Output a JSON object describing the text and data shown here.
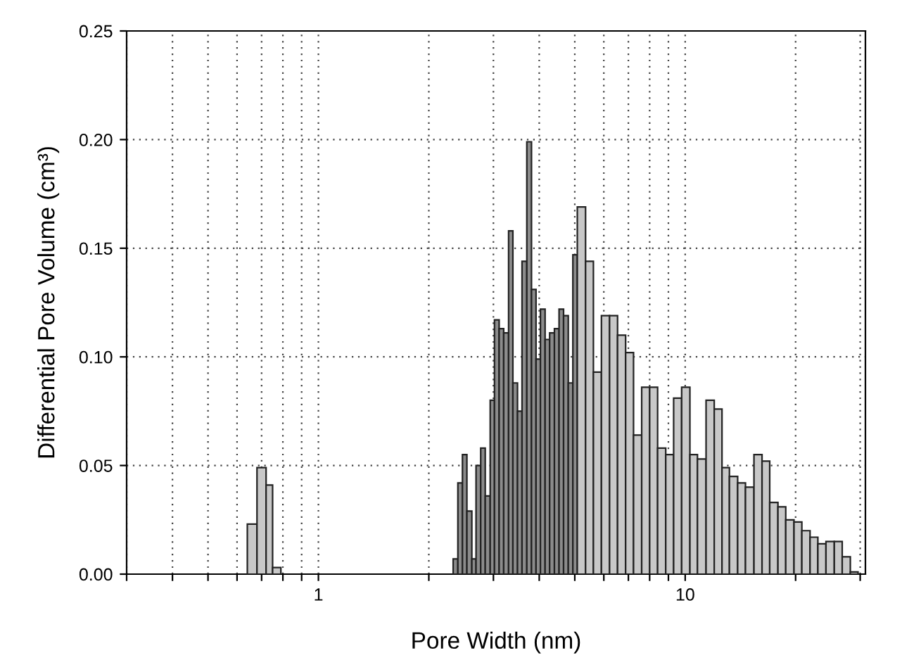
{
  "chart_data": {
    "type": "histogram",
    "xlabel": "Pore Width (nm)",
    "ylabel": "Differential Pore Volume (cm³)",
    "log": "x",
    "bins": [
      0.64,
      0.68,
      0.72,
      0.75,
      0.79,
      2.33,
      2.4,
      2.47,
      2.54,
      2.62,
      2.69,
      2.77,
      2.85,
      2.94,
      3.02,
      3.11,
      3.2,
      3.3,
      3.39,
      3.49,
      3.59,
      3.7,
      3.81,
      3.92,
      4.03,
      4.15,
      4.27,
      4.4,
      4.53,
      4.66,
      4.8,
      4.94,
      5.08,
      5.35,
      5.62,
      5.91,
      6.22,
      6.54,
      6.88,
      7.23,
      7.61,
      8.0,
      8.41,
      8.85,
      9.3,
      9.78,
      10.3,
      10.8,
      11.4,
      12.0,
      12.6,
      13.2,
      13.9,
      14.6,
      15.4,
      16.2,
      17.0,
      17.9,
      18.8,
      19.8,
      20.8,
      21.9,
      23.0,
      24.2,
      25.5,
      26.8,
      28.2,
      29.6
    ],
    "values": [
      0.023,
      0.049,
      0.041,
      0.003,
      null,
      0.007,
      0.042,
      0.055,
      0.029,
      0.007,
      0.05,
      0.058,
      0.036,
      0.08,
      0.117,
      0.113,
      0.111,
      0.158,
      0.088,
      0.075,
      0.144,
      0.199,
      0.131,
      0.099,
      0.122,
      0.108,
      0.111,
      0.113,
      0.122,
      0.119,
      0.088,
      0.147,
      0.169,
      0.144,
      0.093,
      0.119,
      0.119,
      0.11,
      0.102,
      0.064,
      0.086,
      0.086,
      0.058,
      0.055,
      0.081,
      0.086,
      0.055,
      0.053,
      0.08,
      0.076,
      0.049,
      0.045,
      0.042,
      0.04,
      0.055,
      0.052,
      0.033,
      0.031,
      0.025,
      0.024,
      0.02,
      0.017,
      0.014,
      0.015,
      0.015,
      0.008,
      0.001
    ],
    "colors": [
      "#c8c8c8",
      "#c8c8c8",
      "#c8c8c8",
      "#c8c8c8",
      "#c8c8c8",
      "#8c8c8c",
      "#8c8c8c",
      "#8c8c8c",
      "#8c8c8c",
      "#8c8c8c",
      "#8c8c8c",
      "#8c8c8c",
      "#8c8c8c",
      "#8c8c8c",
      "#8c8c8c",
      "#8c8c8c",
      "#8c8c8c",
      "#8c8c8c",
      "#8c8c8c",
      "#8c8c8c",
      "#8c8c8c",
      "#8c8c8c",
      "#8c8c8c",
      "#8c8c8c",
      "#8c8c8c",
      "#8c8c8c",
      "#8c8c8c",
      "#8c8c8c",
      "#8c8c8c",
      "#8c8c8c",
      "#8c8c8c",
      "#8c8c8c",
      "#c8c8c8",
      "#c8c8c8",
      "#c8c8c8",
      "#c8c8c8",
      "#c8c8c8",
      "#c8c8c8",
      "#c8c8c8",
      "#c8c8c8",
      "#c8c8c8",
      "#c8c8c8",
      "#c8c8c8",
      "#c8c8c8",
      "#c8c8c8",
      "#c8c8c8",
      "#c8c8c8",
      "#c8c8c8",
      "#c8c8c8",
      "#c8c8c8",
      "#c8c8c8",
      "#c8c8c8",
      "#c8c8c8",
      "#c8c8c8",
      "#c8c8c8",
      "#c8c8c8",
      "#c8c8c8",
      "#c8c8c8",
      "#c8c8c8",
      "#c8c8c8",
      "#c8c8c8",
      "#c8c8c8",
      "#c8c8c8",
      "#c8c8c8",
      "#c8c8c8",
      "#c8c8c8",
      "#c8c8c8"
    ],
    "xlim": [
      0.3,
      31
    ],
    "xticks": [
      {
        "value": 0.3,
        "label": null
      },
      {
        "value": 0.4,
        "label": null
      },
      {
        "value": 0.5,
        "label": null
      },
      {
        "value": 0.6,
        "label": null
      },
      {
        "value": 0.7,
        "label": null
      },
      {
        "value": 0.8,
        "label": null
      },
      {
        "value": 0.9,
        "label": null
      },
      1,
      {
        "value": 2,
        "label": null
      },
      {
        "value": 3,
        "label": null
      },
      {
        "value": 4,
        "label": null
      },
      {
        "value": 5,
        "label": null
      },
      {
        "value": 6,
        "label": null
      },
      {
        "value": 7,
        "label": null
      },
      {
        "value": 8,
        "label": null
      },
      {
        "value": 9,
        "label": null
      },
      10,
      {
        "value": 20,
        "label": null
      },
      {
        "value": 30,
        "label": null
      }
    ],
    "ylim": [
      0,
      0.25
    ],
    "yticks": [
      {
        "value": 0,
        "label": "0.00"
      },
      {
        "value": 0.05,
        "label": "0.05"
      },
      {
        "value": 0.1,
        "label": "0.10"
      },
      {
        "value": 0.15,
        "label": "0.15"
      },
      {
        "value": 0.2,
        "label": "0.20"
      },
      {
        "value": 0.25,
        "label": "0.25"
      }
    ],
    "grid": true
  }
}
